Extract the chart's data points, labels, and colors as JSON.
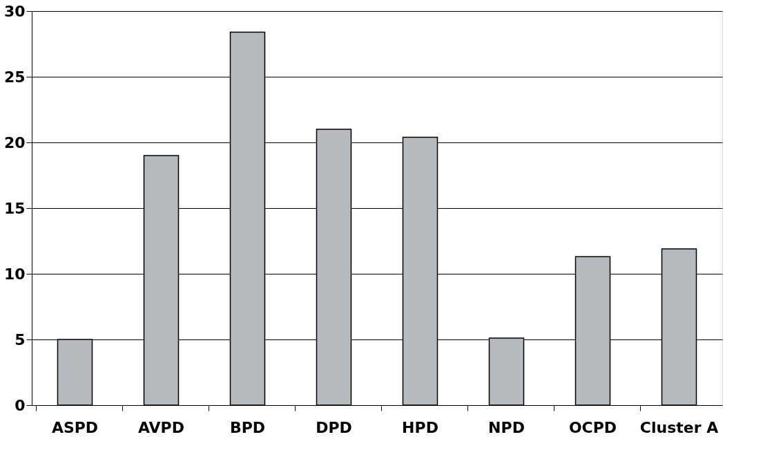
{
  "chart_data": {
    "type": "bar",
    "categories": [
      "ASPD",
      "AVPD",
      "BPD",
      "DPD",
      "HPD",
      "NPD",
      "OCPD",
      "Cluster A"
    ],
    "values": [
      5.0,
      19.0,
      28.4,
      21.0,
      20.4,
      5.1,
      11.3,
      11.9
    ],
    "color": "#b8b9bd",
    "ylim": [
      0,
      30
    ],
    "yticks": [
      0,
      5,
      10,
      15,
      20,
      25,
      30
    ],
    "grid": "y"
  }
}
